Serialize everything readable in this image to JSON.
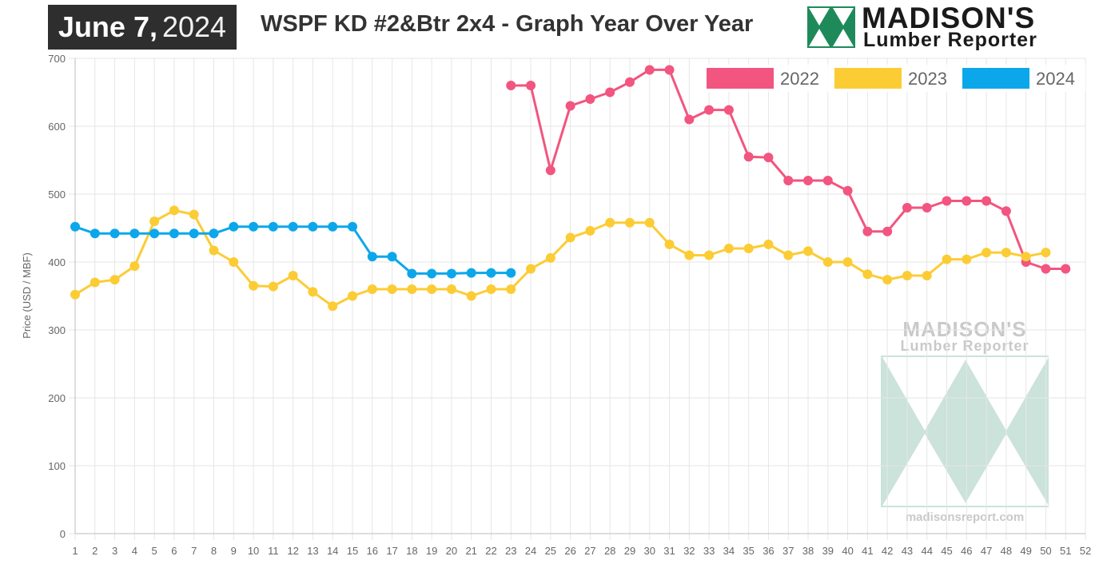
{
  "header": {
    "date_month_day": "June 7,",
    "date_year": "2024",
    "title": "WSPF KD #2&Btr 2x4 - Graph Year Over Year",
    "logo_line1": "MADISON'S",
    "logo_line2": "Lumber Reporter"
  },
  "watermark": {
    "line1": "MADISON'S",
    "line2": "Lumber Reporter",
    "url": "madisonsreport.com"
  },
  "chart_data": {
    "type": "line",
    "ylabel": "Price (USD / MBF)",
    "xlabel": "",
    "x": [
      1,
      2,
      3,
      4,
      5,
      6,
      7,
      8,
      9,
      10,
      11,
      12,
      13,
      14,
      15,
      16,
      17,
      18,
      19,
      20,
      21,
      22,
      23,
      24,
      25,
      26,
      27,
      28,
      29,
      30,
      31,
      32,
      33,
      34,
      35,
      36,
      37,
      38,
      39,
      40,
      41,
      42,
      43,
      44,
      45,
      46,
      47,
      48,
      49,
      50,
      51,
      52
    ],
    "ylim": [
      0,
      700
    ],
    "yticks": [
      0,
      100,
      200,
      300,
      400,
      500,
      600,
      700
    ],
    "grid": true,
    "legend_position": "top-right",
    "series": [
      {
        "name": "2022",
        "color": "#f2557f",
        "values": [
          null,
          null,
          null,
          null,
          null,
          null,
          null,
          null,
          null,
          null,
          null,
          null,
          null,
          null,
          null,
          null,
          null,
          null,
          null,
          null,
          null,
          null,
          660,
          660,
          535,
          630,
          640,
          650,
          665,
          683,
          683,
          610,
          624,
          624,
          555,
          554,
          520,
          520,
          520,
          505,
          445,
          445,
          480,
          480,
          490,
          490,
          490,
          475,
          400,
          390,
          390,
          null
        ]
      },
      {
        "name": "2023",
        "color": "#fccc35",
        "values": [
          352,
          370,
          374,
          394,
          460,
          476,
          470,
          417,
          400,
          365,
          364,
          380,
          356,
          335,
          350,
          360,
          360,
          360,
          360,
          360,
          350,
          360,
          360,
          390,
          406,
          436,
          446,
          458,
          458,
          458,
          426,
          410,
          410,
          420,
          420,
          426,
          410,
          416,
          400,
          400,
          382,
          374,
          380,
          380,
          404,
          404,
          414,
          414,
          408,
          414,
          null,
          null
        ]
      },
      {
        "name": "2024",
        "color": "#0ca7ea",
        "values": [
          452,
          442,
          442,
          442,
          442,
          442,
          442,
          442,
          452,
          452,
          452,
          452,
          452,
          452,
          452,
          408,
          408,
          383,
          383,
          383,
          384,
          384,
          384,
          null,
          null,
          null,
          null,
          null,
          null,
          null,
          null,
          null,
          null,
          null,
          null,
          null,
          null,
          null,
          null,
          null,
          null,
          null,
          null,
          null,
          null,
          null,
          null,
          null,
          null,
          null,
          null,
          null
        ]
      }
    ]
  }
}
